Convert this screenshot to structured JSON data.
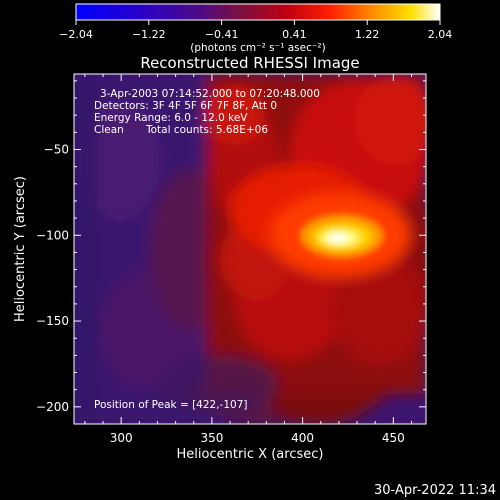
{
  "colorbar": {
    "ticks": [
      "-2.04",
      "-1.22",
      "-0.41",
      "0.41",
      "1.22",
      "2.04"
    ],
    "unit_label": "(photons cm⁻² s⁻¹ asec⁻²)"
  },
  "chart_data": {
    "type": "heatmap",
    "title": "Reconstructed RHESSI Image",
    "xlabel": "Heliocentric X (arcsec)",
    "ylabel": "Heliocentric Y (arcsec)",
    "xlim": [
      274,
      468
    ],
    "ylim": [
      -210,
      -6
    ],
    "xticks": [
      300,
      350,
      400,
      450
    ],
    "yticks": [
      -50,
      -100,
      -150,
      -200
    ],
    "zlim": [
      -2.04,
      2.04
    ],
    "colormap": "rhessi-hot",
    "peak": [
      422,
      -107
    ],
    "annotations": {
      "line1": "3-Apr-2003 07:14:52.000 to 07:20:48.000",
      "line2": "Detectors: 3F 4F 5F 6F 7F 8F, Att 0",
      "line3": "Energy Range: 6.0 - 12.0 keV",
      "line4a": "Clean",
      "line4b": "Total counts: 5.68E+06",
      "peak_label": "Position of Peak = [422,-107]"
    }
  },
  "footer": {
    "timestamp": "30-Apr-2022 11:34"
  }
}
